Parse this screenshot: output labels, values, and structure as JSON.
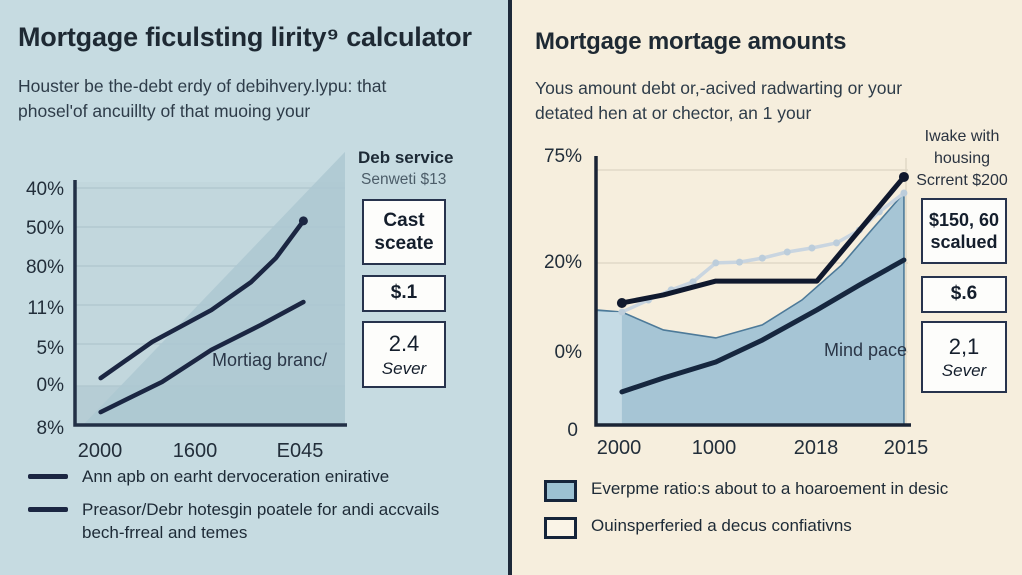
{
  "left_panel": {
    "title": "Mortgage ficulsting lirity⁹ calculator",
    "subtitle_line1": "Houster be the-debt erdy of debihvery.lypu: that",
    "subtitle_line2": "phosel'of ancuillty of that muoing your",
    "sidebar": {
      "heading": "Deb service",
      "subheading": "Senweti $13",
      "box1_value": "Cast",
      "box1_caption": "sceate",
      "box2_value": "$.1",
      "box3_value": "2.4",
      "box3_caption": "Sever"
    }
  },
  "right_panel": {
    "title": "Mortgage mortage amounts",
    "subtitle_line1": "Yous amount debt or,-acived radwarting or your",
    "subtitle_line2": "detated hen at or chector, an 1 your",
    "sidebar": {
      "heading_line1": "Iwake with",
      "heading_line2": "housing",
      "heading_line3": "Scrrent $200",
      "box1_value": "$150, 60",
      "box1_caption": "scalued",
      "box2_value": "$.6",
      "box3_value": "2,1",
      "box3_caption": "Sever"
    }
  },
  "chart_data": [
    {
      "type": "line",
      "title": "Mortgage ficulsting lirity⁹ calculator",
      "ytick_labels": [
        "40%",
        "50%",
        "80%",
        "11%",
        "5%",
        "0%",
        "8%"
      ],
      "xtick_labels": [
        "2000",
        "1600",
        "E045"
      ],
      "annotation": "Mortiag branc/",
      "grid": true,
      "legend_position": "bottom",
      "legend": [
        "Ann apb on earht dervoceration enirative",
        "Preasor/Debr hotesgin poatele for andi accvails bech-frreal and temes"
      ],
      "series": [
        {
          "name": "upper-line",
          "x": [
            0.095,
            0.286,
            0.505,
            0.652,
            0.744,
            0.846
          ],
          "y": [
            0.193,
            0.342,
            0.473,
            0.588,
            0.687,
            0.84
          ],
          "end_marker": true
        },
        {
          "name": "lower-line",
          "x": [
            0.095,
            0.322,
            0.505,
            0.689,
            0.846
          ],
          "y": [
            0.053,
            0.177,
            0.309,
            0.412,
            0.506
          ],
          "end_marker": false
        }
      ],
      "area_triangle": [
        [
          0.03,
          0
        ],
        [
          1.0,
          1.124
        ],
        [
          1.0,
          0
        ]
      ]
    },
    {
      "type": "line+area",
      "title": "Mortgage mortage amounts",
      "ytick_labels": [
        "75%",
        "20%",
        "0%"
      ],
      "origin_label": "0",
      "xtick_labels": [
        "2000",
        "1000",
        "2018",
        "2015"
      ],
      "annotation": "Mind pace",
      "grid": true,
      "legend_position": "bottom",
      "legend": [
        "Everpme ratio:s about to a hoaroement in desic",
        "Ouinsperferied a decus confiativns"
      ],
      "area_series": {
        "name": "shaded-area",
        "x": [
          0.0,
          0.083,
          0.216,
          0.384,
          0.533,
          0.66,
          0.787,
          0.883,
          0.987
        ],
        "y": [
          0.431,
          0.423,
          0.356,
          0.326,
          0.375,
          0.468,
          0.599,
          0.73,
          0.869
        ]
      },
      "series": [
        {
          "name": "dark-top-line",
          "x": [
            0.083,
            0.216,
            0.384,
            0.708,
            0.987
          ],
          "y": [
            0.457,
            0.487,
            0.539,
            0.539,
            0.929
          ],
          "markers": "ends"
        },
        {
          "name": "light-marker-line",
          "x": [
            0.083,
            0.168,
            0.241,
            0.311,
            0.384,
            0.46,
            0.533,
            0.613,
            0.692,
            0.771,
            0.844,
            0.908,
            0.987
          ],
          "y": [
            0.423,
            0.468,
            0.506,
            0.536,
            0.607,
            0.61,
            0.625,
            0.648,
            0.663,
            0.682,
            0.73,
            0.798,
            0.869
          ],
          "markers": "all"
        },
        {
          "name": "dark-lower-line",
          "x": [
            0.083,
            0.216,
            0.384,
            0.533,
            0.708,
            0.844,
            0.987
          ],
          "y": [
            0.124,
            0.176,
            0.236,
            0.318,
            0.431,
            0.524,
            0.618
          ],
          "markers": "none"
        }
      ]
    }
  ],
  "colors": {
    "left_bg": "#c6dbe1",
    "right_bg": "#f6eedd",
    "navy": "#1b2642",
    "right_navy": "#111a2f",
    "area_fill": "#a6c5d5",
    "legend_fill": "#9cc1d2"
  }
}
